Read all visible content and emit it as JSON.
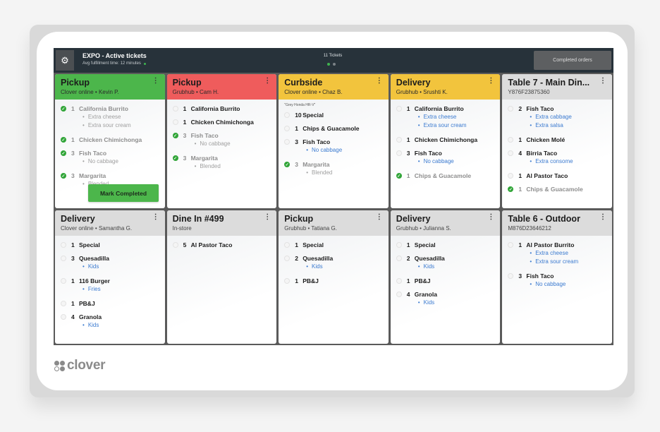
{
  "topbar": {
    "settings_icon": "gear-icon",
    "title": "EXPO - Active tickets",
    "subtitle": "Avg fulfillment time: 12 minutes",
    "ticket_count": "11 Tickets",
    "pages": 2,
    "active_page": 1,
    "completed_orders_label": "Completed orders"
  },
  "colors": {
    "green": "#4cb64b",
    "red": "#ef5c5c",
    "yellow": "#f2c43d",
    "gray": "#dcdcdc",
    "modifier_blue": "#3c7bd0",
    "topbar": "#27323a"
  },
  "tickets": [
    {
      "title": "Pickup",
      "subtitle": "Clover online •  Kevin P.",
      "color": "green",
      "items": [
        {
          "qty": "1",
          "name": "California Burrito",
          "done": true,
          "mods": [
            "Extra cheese",
            "Extra sour cream"
          ]
        },
        {
          "qty": "1",
          "name": "Chicken Chimichonga",
          "done": true,
          "mods": []
        },
        {
          "qty": "3",
          "name": "Fish Taco",
          "done": true,
          "mods": [
            "No cabbage"
          ]
        },
        {
          "qty": "3",
          "name": "Margarita",
          "done": true,
          "mods": [
            "Blended"
          ]
        }
      ],
      "action_label": "Mark Completed"
    },
    {
      "title": "Pickup",
      "subtitle": "Grubhub •  Cam H.",
      "color": "red",
      "items": [
        {
          "qty": "1",
          "name": "California Burrito",
          "done": false,
          "mods": []
        },
        {
          "qty": "1",
          "name": "Chicken Chimichonga",
          "done": false,
          "mods": []
        },
        {
          "qty": "3",
          "name": "Fish Taco",
          "done": true,
          "mods": [
            "No cabbage"
          ]
        },
        {
          "qty": "3",
          "name": "Margarita",
          "done": true,
          "mods": [
            "Blended"
          ]
        }
      ]
    },
    {
      "title": "Curbside",
      "subtitle": "Clover online •  Chaz B.",
      "color": "yellow",
      "note": "\"Grey Honda HR-V\"",
      "items": [
        {
          "qty": "10",
          "name": "Special",
          "done": false,
          "mods": []
        },
        {
          "qty": "1",
          "name": "Chips & Guacamole",
          "done": false,
          "mods": []
        },
        {
          "qty": "3",
          "name": "Fish Taco",
          "done": false,
          "mods": [
            "No cabbage"
          ]
        },
        {
          "qty": "3",
          "name": "Margarita",
          "done": true,
          "mods": [
            "Blended"
          ]
        }
      ]
    },
    {
      "title": "Delivery",
      "subtitle": "Grubhub •  Srushti K.",
      "color": "yellow",
      "items": [
        {
          "qty": "1",
          "name": "California Burrito",
          "done": false,
          "mods": [
            "Extra cheese",
            "Extra sour cream"
          ]
        },
        {
          "qty": "1",
          "name": "Chicken Chimichonga",
          "done": false,
          "mods": []
        },
        {
          "qty": "3",
          "name": "Fish Taco",
          "done": false,
          "mods": [
            "No cabbage"
          ]
        },
        {
          "qty": "1",
          "name": "Chips & Guacamole",
          "done": true,
          "mods": []
        }
      ]
    },
    {
      "title": "Table 7 - Main Din...",
      "subtitle": "Y876F23875360",
      "color": "gray",
      "items": [
        {
          "qty": "2",
          "name": "Fish Taco",
          "done": false,
          "mods": [
            "Extra cabbage",
            "Extra salsa"
          ]
        },
        {
          "qty": "1",
          "name": "Chicken Molé",
          "done": false,
          "mods": []
        },
        {
          "qty": "4",
          "name": "Birria Taco",
          "done": false,
          "mods": [
            "Extra consome"
          ]
        },
        {
          "qty": "1",
          "name": "Al Pastor Taco",
          "done": false,
          "mods": []
        },
        {
          "qty": "1",
          "name": "Chips & Guacamole",
          "done": true,
          "mods": []
        }
      ]
    },
    {
      "title": "Delivery",
      "subtitle": "Clover online •  Samantha G.",
      "color": "gray",
      "items": [
        {
          "qty": "1",
          "name": "Special",
          "done": false,
          "mods": []
        },
        {
          "qty": "3",
          "name": "Quesadilla",
          "done": false,
          "mods": [
            "Kids"
          ]
        },
        {
          "qty": "1",
          "name": "116 Burger",
          "done": false,
          "mods": [
            "Fries"
          ]
        },
        {
          "qty": "1",
          "name": "PB&J",
          "done": false,
          "mods": []
        },
        {
          "qty": "4",
          "name": "Granola",
          "done": false,
          "mods": [
            "Kids"
          ]
        }
      ]
    },
    {
      "title": "Dine In #499",
      "subtitle": "In-store",
      "color": "gray",
      "items": [
        {
          "qty": "5",
          "name": "Al Pastor Taco",
          "done": false,
          "mods": []
        }
      ]
    },
    {
      "title": "Pickup",
      "subtitle": "Grubhub •  Tatiana G.",
      "color": "gray",
      "items": [
        {
          "qty": "1",
          "name": "Special",
          "done": false,
          "mods": []
        },
        {
          "qty": "2",
          "name": "Quesadilla",
          "done": false,
          "mods": [
            "Kids"
          ]
        },
        {
          "qty": "1",
          "name": "PB&J",
          "done": false,
          "mods": []
        }
      ]
    },
    {
      "title": "Delivery",
      "subtitle": "Grubhub •  Julianna S.",
      "color": "gray",
      "items": [
        {
          "qty": "1",
          "name": "Special",
          "done": false,
          "mods": []
        },
        {
          "qty": "2",
          "name": "Quesadilla",
          "done": false,
          "mods": [
            "Kids"
          ]
        },
        {
          "qty": "1",
          "name": "PB&J",
          "done": false,
          "mods": []
        },
        {
          "qty": "4",
          "name": "Granola",
          "done": false,
          "mods": [
            "Kids"
          ]
        }
      ]
    },
    {
      "title": "Table 6 - Outdoor",
      "subtitle": "M876D23646212",
      "color": "gray",
      "items": [
        {
          "qty": "1",
          "name": "Al Pastor Burrito",
          "done": false,
          "mods": [
            "Extra cheese",
            "Extra sour cream"
          ]
        },
        {
          "qty": "3",
          "name": "Fish Taco",
          "done": false,
          "mods": [
            "No cabbage"
          ]
        }
      ]
    }
  ],
  "brand": {
    "logo_text": "clover",
    "logo_icon": "clover-logo-icon"
  }
}
